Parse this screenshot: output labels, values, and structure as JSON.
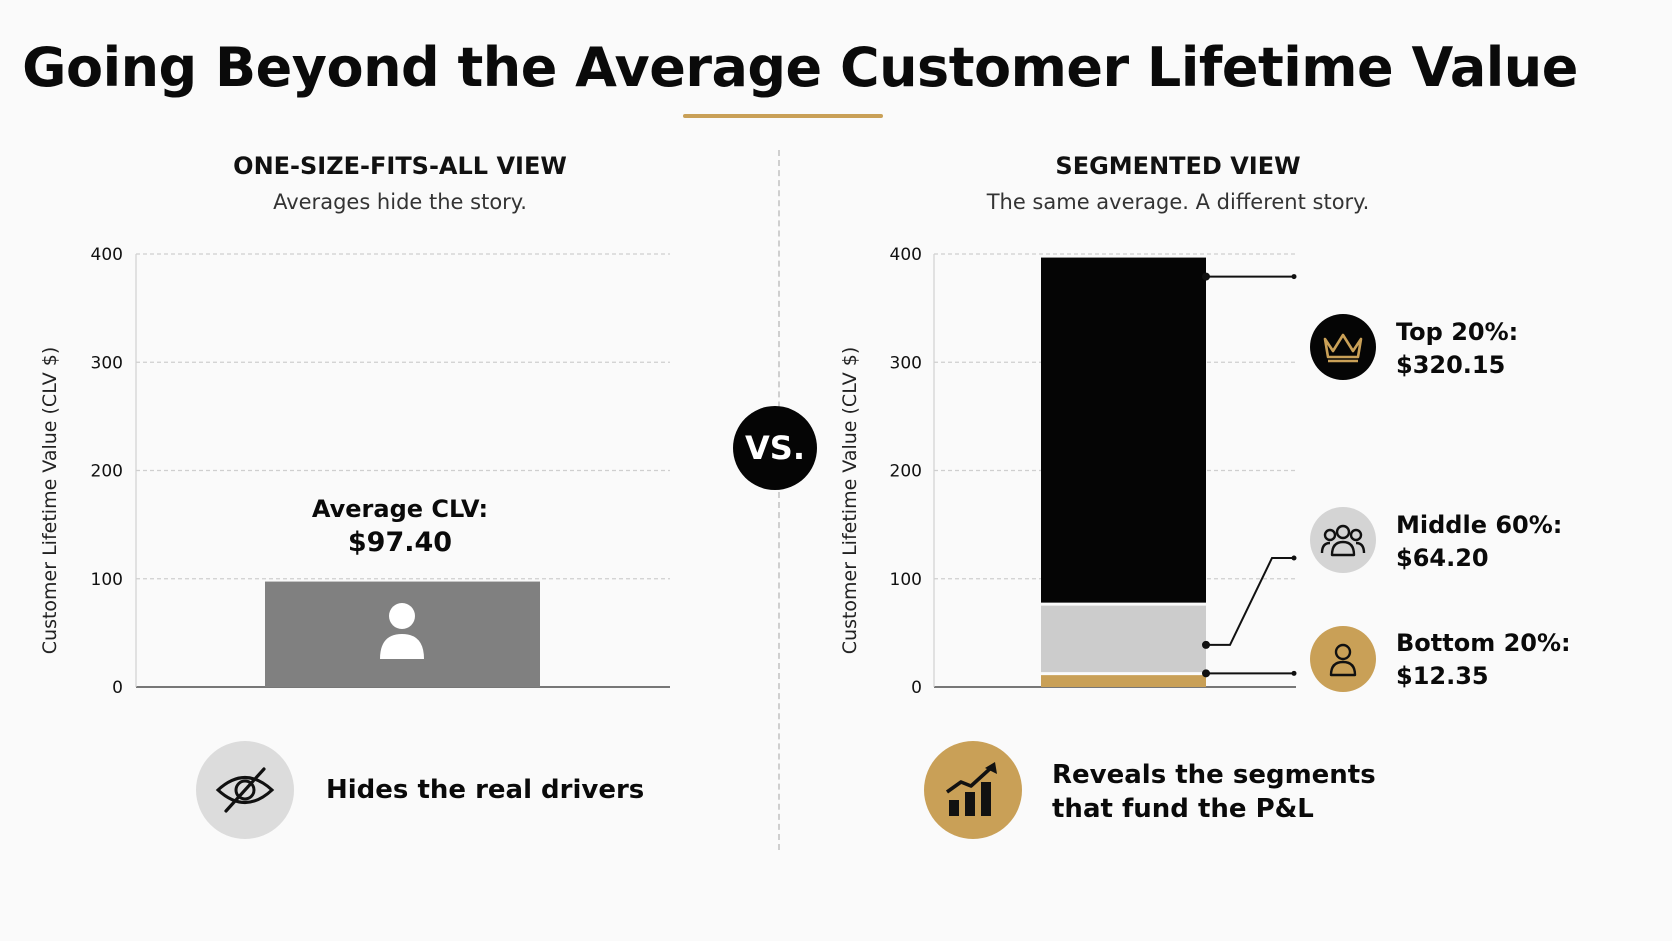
{
  "title": "Going Beyond the Average Customer Lifetime Value",
  "vs_label": "VS.",
  "colors": {
    "accent": "#c9a057",
    "bar_average": "#808080",
    "segment_top": "#050505",
    "segment_middle": "#cccccc",
    "segment_bottom": "#c9a057"
  },
  "left_panel": {
    "heading": "ONE-SIZE-FITS-ALL VIEW",
    "subheading": "Averages hide the story.",
    "annotation_line1": "Average CLV:",
    "annotation_line2": "$97.40",
    "bar_icon": "user-icon",
    "footer_icon": "eye-off-icon",
    "footer_text": "Hides the real drivers"
  },
  "right_panel": {
    "heading": "SEGMENTED VIEW",
    "subheading": "The same average. A different story.",
    "footer_icon": "bar-chart-trend-icon",
    "footer_text_line1": "Reveals the segments",
    "footer_text_line2": "that fund the P&L",
    "segments": [
      {
        "name": "Top 20%",
        "label_line1": "Top 20%:",
        "label_line2": "$320.15",
        "icon": "crown-icon"
      },
      {
        "name": "Middle 60%",
        "label_line1": "Middle 60%:",
        "label_line2": "$64.20",
        "icon": "group-icon"
      },
      {
        "name": "Bottom 20%",
        "label_line1": "Bottom 20%:",
        "label_line2": "$12.35",
        "icon": "person-icon"
      }
    ]
  },
  "chart_data": [
    {
      "type": "bar",
      "categories": [
        ""
      ],
      "values": [
        97.4
      ],
      "title": "ONE-SIZE-FITS-ALL VIEW",
      "xlabel": "",
      "ylabel": "Customer Lifetime Value (CLV $)",
      "ylim": [
        0,
        400
      ],
      "yticks": [
        "0",
        "100",
        "200",
        "300",
        "400"
      ],
      "grid": true
    },
    {
      "type": "bar",
      "stacked": true,
      "categories": [
        ""
      ],
      "series": [
        {
          "name": "Bottom 20%",
          "values": [
            12.35
          ]
        },
        {
          "name": "Middle 60%",
          "values": [
            64.2
          ]
        },
        {
          "name": "Top 20%",
          "values": [
            320.15
          ]
        }
      ],
      "title": "SEGMENTED VIEW",
      "xlabel": "",
      "ylabel": "Customer Lifetime Value (CLV $)",
      "ylim": [
        0,
        400
      ],
      "yticks": [
        "0",
        "100",
        "200",
        "300",
        "400"
      ],
      "grid": true
    }
  ]
}
